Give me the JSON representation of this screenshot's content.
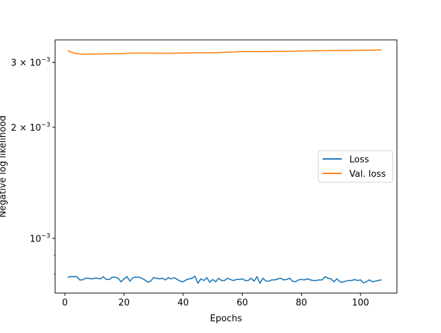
{
  "chart_data": {
    "type": "line",
    "xlabel": "Epochs",
    "ylabel": "Negative log likelihood",
    "yscale": "log",
    "xlim": [
      -3.3,
      112.3
    ],
    "ylim": [
      0.00071,
      0.00345
    ],
    "xticks": [
      0,
      20,
      40,
      60,
      80,
      100
    ],
    "yticks": [
      {
        "value": 0.001,
        "base": "10",
        "exp": "−3",
        "mult": ""
      },
      {
        "value": 0.002,
        "base": "10",
        "exp": "−3",
        "mult": "2 × "
      },
      {
        "value": 0.003,
        "base": "10",
        "exp": "−3",
        "mult": "3 × "
      }
    ],
    "y_minor_ticks": [
      0.0008,
      0.0009,
      0.004
    ],
    "legend_position": "center-right",
    "grid": false,
    "series": [
      {
        "name": "Loss",
        "color": "#1f77b4",
        "x": [
          1,
          2,
          3,
          4,
          5,
          6,
          7,
          8,
          9,
          10,
          11,
          12,
          13,
          14,
          15,
          16,
          17,
          18,
          19,
          20,
          21,
          22,
          23,
          24,
          25,
          26,
          27,
          28,
          29,
          30,
          31,
          32,
          33,
          34,
          35,
          36,
          37,
          38,
          39,
          40,
          41,
          42,
          43,
          44,
          45,
          46,
          47,
          48,
          49,
          50,
          51,
          52,
          53,
          54,
          55,
          56,
          57,
          58,
          59,
          60,
          61,
          62,
          63,
          64,
          65,
          66,
          67,
          68,
          69,
          70,
          71,
          72,
          73,
          74,
          75,
          76,
          77,
          78,
          79,
          80,
          81,
          82,
          83,
          84,
          85,
          86,
          87,
          88,
          89,
          90,
          91,
          92,
          93,
          94,
          95,
          96,
          97,
          98,
          99,
          100,
          101,
          102,
          103,
          104,
          105,
          106,
          107
        ],
        "y": [
          0.000784,
          0.000787,
          0.000787,
          0.000787,
          0.000771,
          0.000771,
          0.000779,
          0.000779,
          0.000776,
          0.000779,
          0.000779,
          0.000776,
          0.000787,
          0.000773,
          0.000773,
          0.000784,
          0.000784,
          0.000779,
          0.000762,
          0.000776,
          0.000787,
          0.000765,
          0.000782,
          0.000784,
          0.000784,
          0.000779,
          0.000771,
          0.00076,
          0.000765,
          0.000782,
          0.000779,
          0.000776,
          0.000779,
          0.000771,
          0.000782,
          0.000776,
          0.000782,
          0.000773,
          0.000765,
          0.000762,
          0.000771,
          0.000776,
          0.000779,
          0.000789,
          0.000755,
          0.000776,
          0.000768,
          0.000782,
          0.00076,
          0.000773,
          0.000762,
          0.000779,
          0.000768,
          0.000768,
          0.000779,
          0.000773,
          0.000768,
          0.000773,
          0.000773,
          0.000776,
          0.000768,
          0.000768,
          0.000779,
          0.000765,
          0.000787,
          0.000755,
          0.000779,
          0.000765,
          0.000765,
          0.000771,
          0.000771,
          0.000776,
          0.000779,
          0.000771,
          0.000773,
          0.000779,
          0.000765,
          0.000762,
          0.000771,
          0.000773,
          0.000771,
          0.000776,
          0.000771,
          0.000768,
          0.000768,
          0.000771,
          0.000771,
          0.000787,
          0.000779,
          0.000776,
          0.000762,
          0.000776,
          0.000762,
          0.00076,
          0.000765,
          0.000768,
          0.000768,
          0.000773,
          0.000768,
          0.000771,
          0.000757,
          0.000762,
          0.000771,
          0.000762,
          0.000765,
          0.000768,
          0.000771
        ]
      },
      {
        "name": "Val. loss",
        "color": "#ff7f0e",
        "x": [
          1,
          2,
          3,
          4,
          5,
          6,
          7,
          8,
          9,
          10,
          11,
          12,
          13,
          14,
          15,
          16,
          17,
          18,
          19,
          20,
          21,
          22,
          23,
          24,
          25,
          26,
          27,
          28,
          29,
          30,
          31,
          32,
          33,
          34,
          35,
          36,
          37,
          38,
          39,
          40,
          41,
          42,
          43,
          44,
          45,
          46,
          47,
          48,
          49,
          50,
          51,
          52,
          53,
          54,
          55,
          56,
          57,
          58,
          59,
          60,
          61,
          62,
          63,
          64,
          65,
          66,
          67,
          68,
          69,
          70,
          71,
          72,
          73,
          74,
          75,
          76,
          77,
          78,
          79,
          80,
          81,
          82,
          83,
          84,
          85,
          86,
          87,
          88,
          89,
          90,
          91,
          92,
          93,
          94,
          95,
          96,
          97,
          98,
          99,
          100,
          101,
          102,
          103,
          104,
          105,
          106,
          107
        ],
        "y": [
          0.003225,
          0.0032,
          0.00318,
          0.003168,
          0.003161,
          0.003156,
          0.003156,
          0.003156,
          0.003158,
          0.003158,
          0.00316,
          0.00316,
          0.003161,
          0.003162,
          0.003163,
          0.003164,
          0.003166,
          0.003167,
          0.003169,
          0.003171,
          0.003173,
          0.003175,
          0.003175,
          0.003176,
          0.003176,
          0.003176,
          0.003177,
          0.003177,
          0.003176,
          0.003175,
          0.003174,
          0.003174,
          0.003174,
          0.003173,
          0.003174,
          0.003174,
          0.003175,
          0.003175,
          0.003177,
          0.003178,
          0.00318,
          0.003182,
          0.003183,
          0.003183,
          0.003183,
          0.003183,
          0.003183,
          0.003183,
          0.003184,
          0.003184,
          0.003186,
          0.003188,
          0.00319,
          0.003193,
          0.003195,
          0.003197,
          0.0032,
          0.003202,
          0.003204,
          0.003206,
          0.003207,
          0.003208,
          0.003208,
          0.003208,
          0.003208,
          0.003208,
          0.00321,
          0.00321,
          0.003211,
          0.003212,
          0.003212,
          0.003212,
          0.003212,
          0.003212,
          0.003212,
          0.003212,
          0.003213,
          0.003214,
          0.003216,
          0.003218,
          0.003219,
          0.003221,
          0.003222,
          0.003223,
          0.003225,
          0.003225,
          0.003226,
          0.003227,
          0.003228,
          0.003228,
          0.003228,
          0.003228,
          0.003228,
          0.003228,
          0.003228,
          0.003229,
          0.003229,
          0.00323,
          0.00323,
          0.003232,
          0.003233,
          0.003235,
          0.003236,
          0.003237,
          0.003238,
          0.003239,
          0.00324
        ]
      }
    ]
  }
}
